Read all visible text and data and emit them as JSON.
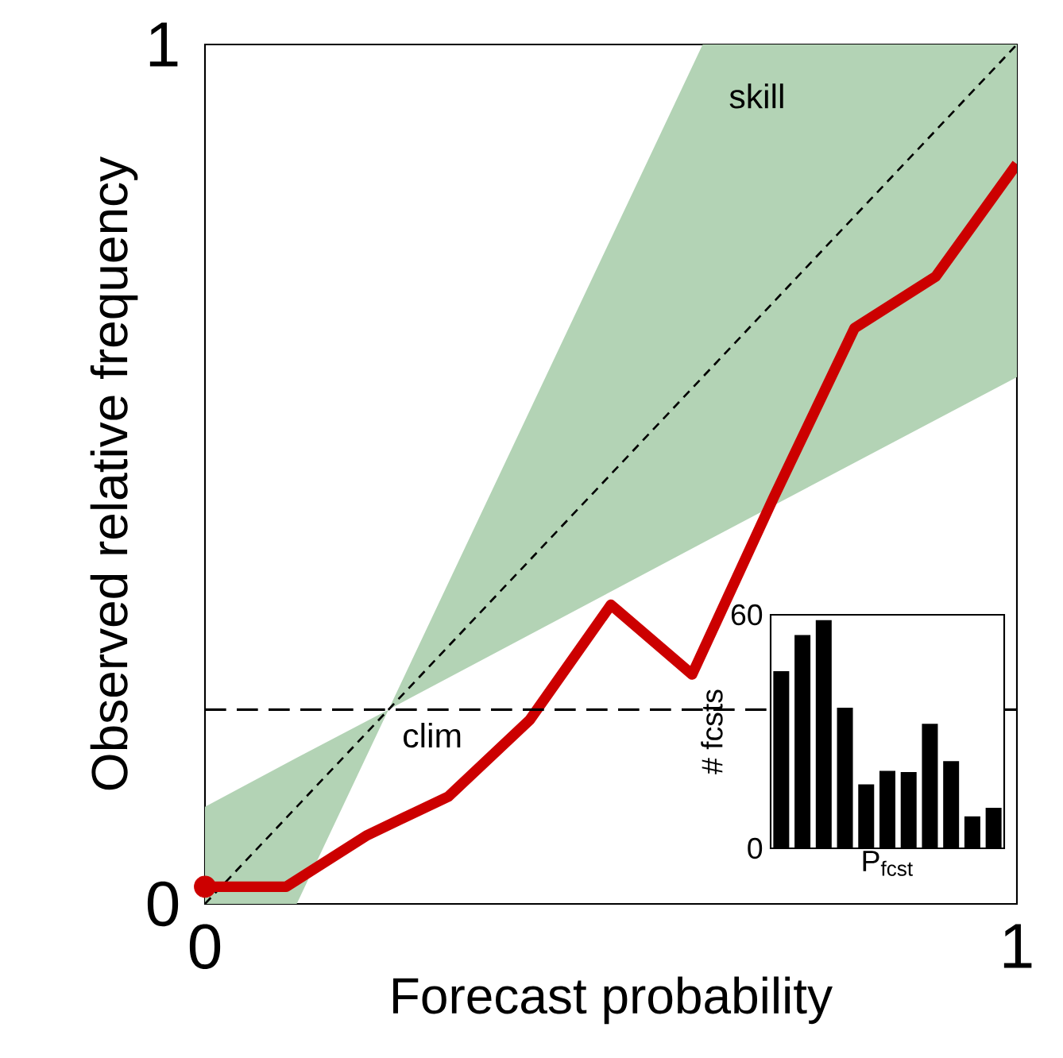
{
  "chart_data": [
    {
      "type": "line",
      "xlabel": "Forecast probability",
      "ylabel": "Observed relative frequency",
      "xlim": [
        0,
        1
      ],
      "ylim": [
        0,
        1
      ],
      "xticks": [
        0,
        1
      ],
      "yticks": [
        0,
        1
      ],
      "series": [
        {
          "type": "line",
          "color": "#b3d3b5",
          "x": [
            0,
            0.113,
            0.226,
            0.613,
            1
          ],
          "values": [
            null,
            null,
            null,
            null,
            null
          ],
          "lower": [
            0,
            0,
            0.226,
            0.42,
            0.613
          ],
          "upper": [
            0.113,
            0.17,
            0.226,
            1,
            1
          ]
        },
        {
          "type": "line",
          "color": "#000000",
          "line_style": "dashed",
          "x": [
            0,
            1
          ],
          "values": [
            0,
            1
          ]
        },
        {
          "type": "line",
          "color": "#cc0000",
          "x": [
            0,
            0.1,
            0.2,
            0.3,
            0.4,
            0.5,
            0.6,
            0.7,
            0.8,
            0.9,
            1
          ],
          "values": [
            0.02,
            0.02,
            0.08,
            0.125,
            0.214,
            0.348,
            0.267,
            0.472,
            0.67,
            0.73,
            0.861
          ]
        },
        {
          "type": "scatter",
          "color": "#cc0000",
          "x": [
            0
          ],
          "values": [
            0.02
          ]
        }
      ],
      "ref_lines": [
        {
          "axis": "y",
          "value": 0.226,
          "label": "clim",
          "line_style": "dashed",
          "color": "#000000"
        }
      ],
      "annotations": [
        "skill"
      ]
    },
    {
      "type": "bar",
      "xlabel": "P$_{fcst}$",
      "ylabel": "# fcsts",
      "categories": [
        null,
        null,
        null,
        null,
        null,
        null,
        null,
        null,
        null,
        null,
        null
      ],
      "values": [
        45.5,
        54.8,
        58.6,
        36.1,
        16.4,
        19.9,
        19.6,
        32,
        22.4,
        8.2,
        10.4
      ],
      "color": "#000000",
      "ylim": [
        0,
        60
      ],
      "yticks": [
        0,
        60
      ]
    }
  ]
}
